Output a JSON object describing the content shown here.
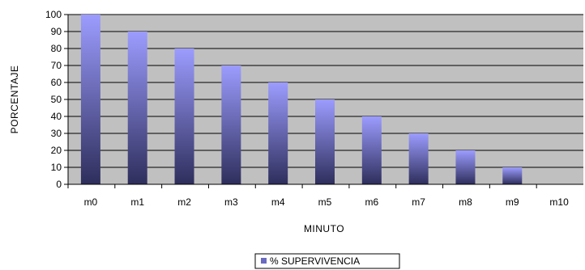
{
  "chart_data": {
    "type": "bar",
    "title": "",
    "xlabel": "MINUTO",
    "ylabel": "PORCENTAJE",
    "categories": [
      "m0",
      "m1",
      "m2",
      "m3",
      "m4",
      "m5",
      "m6",
      "m7",
      "m8",
      "m9",
      "m10"
    ],
    "series": [
      {
        "name": "% SUPERVIVENCIA",
        "values": [
          100,
          90,
          80,
          70,
          60,
          50,
          40,
          30,
          20,
          10,
          0
        ]
      }
    ],
    "ylim": [
      0,
      100
    ],
    "yticks": [
      0,
      10,
      20,
      30,
      40,
      50,
      60,
      70,
      80,
      90,
      100
    ],
    "grid": true,
    "legend": "bottom",
    "colors": {
      "plot_bg": "#c0c0c0",
      "bar_top": "#9c9cff",
      "bar_bottom": "#2e2e5c",
      "gridline": "#000000"
    }
  }
}
